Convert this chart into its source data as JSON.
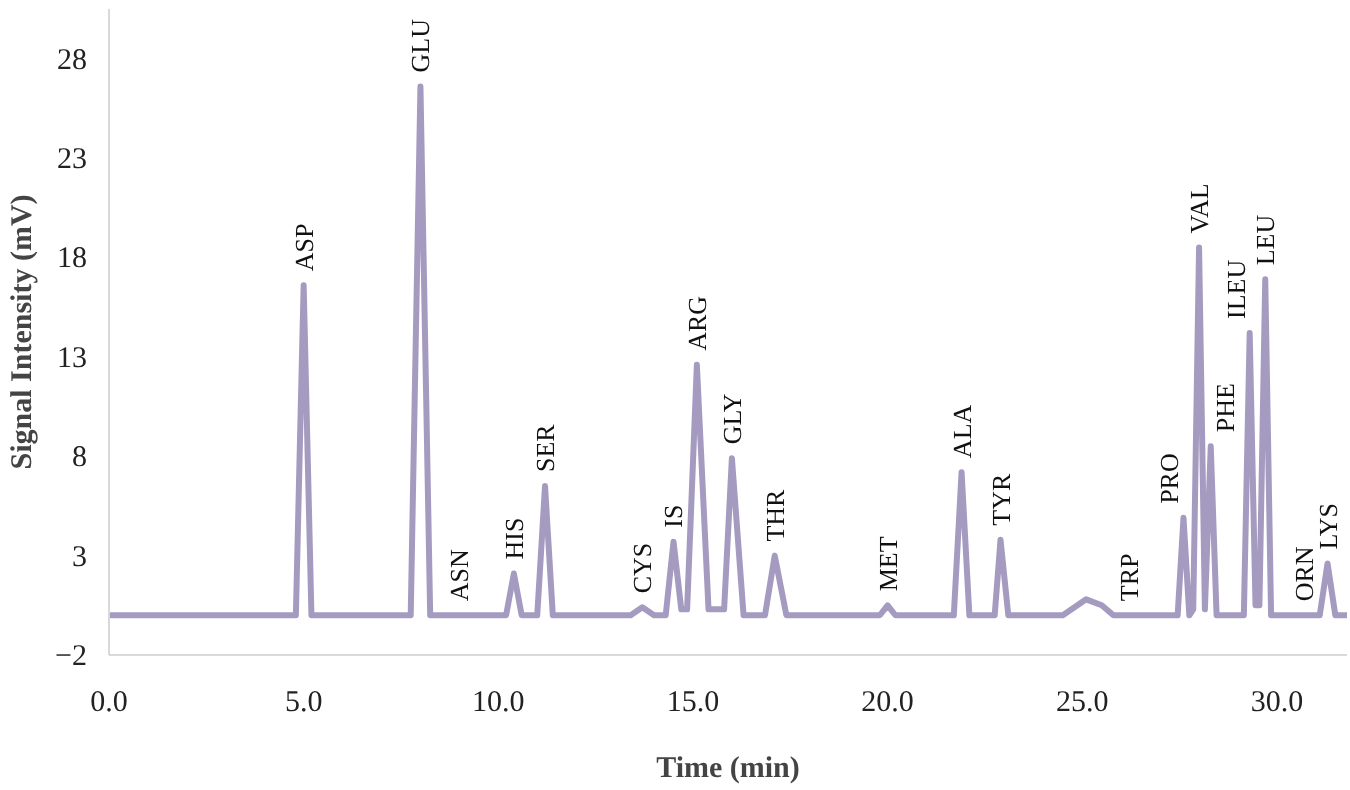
{
  "chart_data": {
    "type": "line",
    "xlabel": "Time (min)",
    "ylabel": "Signal Intensity (mV)",
    "x": [
      0,
      4.8,
      5.0,
      5.2,
      7.75,
      8.0,
      8.25,
      10.2,
      10.4,
      10.6,
      11.0,
      11.2,
      11.4,
      13.4,
      13.7,
      14.0,
      14.3,
      14.5,
      14.7,
      14.85,
      15.1,
      15.4,
      15.8,
      16.0,
      16.3,
      16.85,
      17.1,
      17.4,
      19.8,
      20.0,
      20.2,
      21.7,
      21.9,
      22.1,
      22.75,
      22.9,
      23.1,
      24.5,
      25.1,
      25.5,
      25.8,
      27.45,
      27.6,
      27.75,
      27.85,
      28.0,
      28.15,
      28.3,
      28.45,
      29.15,
      29.3,
      29.45,
      29.55,
      29.7,
      29.85,
      31.1,
      31.3,
      31.5,
      31.8
    ],
    "series": [
      {
        "color": "#a59bc0",
        "values": [
          0,
          0,
          16.6,
          0,
          0,
          26.6,
          0,
          0,
          2.1,
          0,
          0,
          6.5,
          0,
          0,
          0.4,
          0,
          0,
          3.7,
          0.3,
          0.3,
          12.6,
          0.3,
          0.3,
          7.9,
          0,
          0,
          3.0,
          0,
          0,
          0.5,
          0,
          0,
          7.2,
          0,
          0,
          3.8,
          0,
          0,
          0.8,
          0.5,
          0,
          0,
          4.9,
          0,
          0.3,
          18.5,
          0.3,
          8.5,
          0,
          0,
          14.2,
          0.5,
          0.5,
          16.9,
          0,
          0,
          2.6,
          0,
          0
        ]
      }
    ],
    "xlim": [
      0,
      31.8
    ],
    "xticks": [
      {
        "value": 0,
        "label": "0.0"
      },
      {
        "value": 5,
        "label": "5.0"
      },
      {
        "value": 10,
        "label": "10.0"
      },
      {
        "value": 15,
        "label": "15.0"
      },
      {
        "value": 20,
        "label": "20.0"
      },
      {
        "value": 25,
        "label": "25.0"
      },
      {
        "value": 30,
        "label": "30.0"
      }
    ],
    "ylim": [
      -2,
      30.5
    ],
    "yticks": [
      -2,
      3,
      8,
      13,
      18,
      23,
      28
    ],
    "grid": false,
    "marker": "none",
    "line_style": "solid",
    "annotations": [
      {
        "text": "ASP",
        "x": 5.0,
        "y": 16.6
      },
      {
        "text": "GLU",
        "x": 8.0,
        "y": 26.6
      },
      {
        "text": "ASN",
        "x": 9.0,
        "y": 0
      },
      {
        "text": "HIS",
        "x": 10.4,
        "y": 2.1
      },
      {
        "text": "SER",
        "x": 11.2,
        "y": 6.5
      },
      {
        "text": "CYS",
        "x": 13.7,
        "y": 0.4
      },
      {
        "text": "IS",
        "x": 14.5,
        "y": 3.7
      },
      {
        "text": "ARG",
        "x": 15.1,
        "y": 12.6
      },
      {
        "text": "GLY",
        "x": 16.0,
        "y": 7.9
      },
      {
        "text": "THR",
        "x": 17.1,
        "y": 3.0
      },
      {
        "text": "MET",
        "x": 20.0,
        "y": 0.5
      },
      {
        "text": "ALA",
        "x": 21.9,
        "y": 7.2
      },
      {
        "text": "TYR",
        "x": 22.9,
        "y": 3.8
      },
      {
        "text": "TRP",
        "x": 26.2,
        "y": 0
      },
      {
        "text": "PRO",
        "x": 27.6,
        "y": 4.9
      },
      {
        "text": "VAL",
        "x": 28.0,
        "y": 18.5
      },
      {
        "text": "PHE",
        "x": 28.3,
        "y": 8.5
      },
      {
        "text": "ILEU",
        "x": 29.3,
        "y": 14.2
      },
      {
        "text": "LEU",
        "x": 29.7,
        "y": 16.9
      },
      {
        "text": "ORN",
        "x": 30.7,
        "y": 0
      },
      {
        "text": "LYS",
        "x": 31.3,
        "y": 2.6
      }
    ]
  }
}
